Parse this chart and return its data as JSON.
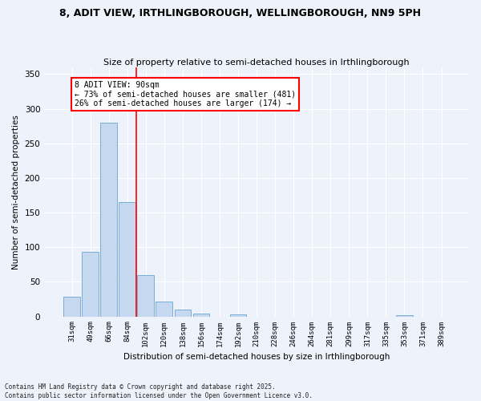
{
  "title": "8, ADIT VIEW, IRTHLINGBOROUGH, WELLINGBOROUGH, NN9 5PH",
  "subtitle": "Size of property relative to semi-detached houses in Irthlingborough",
  "xlabel": "Distribution of semi-detached houses by size in Irthlingborough",
  "ylabel": "Number of semi-detached properties",
  "categories": [
    "31sqm",
    "49sqm",
    "66sqm",
    "84sqm",
    "102sqm",
    "120sqm",
    "138sqm",
    "156sqm",
    "174sqm",
    "192sqm",
    "210sqm",
    "228sqm",
    "246sqm",
    "264sqm",
    "281sqm",
    "299sqm",
    "317sqm",
    "335sqm",
    "353sqm",
    "371sqm",
    "389sqm"
  ],
  "values": [
    28,
    93,
    280,
    165,
    60,
    22,
    10,
    4,
    0,
    3,
    0,
    0,
    0,
    0,
    0,
    0,
    0,
    0,
    2,
    0,
    0
  ],
  "bar_color": "#c5d8f0",
  "bar_edge_color": "#7aaed4",
  "ref_line_index": 3.5,
  "ref_label": "8 ADIT VIEW: 90sqm",
  "anno_line1": "← 73% of semi-detached houses are smaller (481)",
  "anno_line2": "26% of semi-detached houses are larger (174) →",
  "ylim_max": 360,
  "yticks": [
    0,
    50,
    100,
    150,
    200,
    250,
    300,
    350
  ],
  "bg_color": "#eef2fb",
  "grid_color": "#ffffff",
  "footer1": "Contains HM Land Registry data © Crown copyright and database right 2025.",
  "footer2": "Contains public sector information licensed under the Open Government Licence v3.0."
}
